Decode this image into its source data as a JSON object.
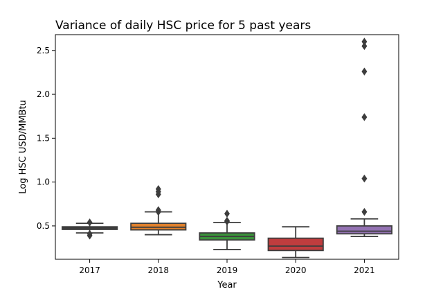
{
  "chart_data": {
    "type": "box",
    "title": "Variance of daily HSC price for 5 past years",
    "xlabel": "Year",
    "ylabel": "Log HSC USD/MMBtu",
    "ylim": [
      0.12,
      2.68
    ],
    "yticks": [
      "0.5",
      "1.0",
      "1.5",
      "2.0",
      "2.5"
    ],
    "grid": false,
    "legend": "none",
    "categories": [
      "2017",
      "2018",
      "2019",
      "2020",
      "2021"
    ],
    "boxes": [
      {
        "category": "2017",
        "color": "#3d3d3d",
        "whisker_low": 0.42,
        "q1": 0.46,
        "median": 0.475,
        "q3": 0.49,
        "whisker_high": 0.53,
        "outliers": [
          0.39,
          0.41,
          0.54
        ]
      },
      {
        "category": "2018",
        "color": "#e1812c",
        "whisker_low": 0.4,
        "q1": 0.455,
        "median": 0.485,
        "q3": 0.53,
        "whisker_high": 0.66,
        "outliers": [
          0.66,
          0.68,
          0.86,
          0.89,
          0.92
        ]
      },
      {
        "category": "2019",
        "color": "#3a923a",
        "whisker_low": 0.23,
        "q1": 0.34,
        "median": 0.38,
        "q3": 0.42,
        "whisker_high": 0.54,
        "outliers": [
          0.55,
          0.56,
          0.64
        ]
      },
      {
        "category": "2020",
        "color": "#c03d3e",
        "whisker_low": 0.14,
        "q1": 0.22,
        "median": 0.27,
        "q3": 0.36,
        "whisker_high": 0.49,
        "outliers": []
      },
      {
        "category": "2021",
        "color": "#9372b2",
        "whisker_low": 0.38,
        "q1": 0.41,
        "median": 0.44,
        "q3": 0.5,
        "whisker_high": 0.58,
        "outliers": [
          0.66,
          1.04,
          1.74,
          2.26,
          2.55,
          2.6
        ]
      }
    ]
  }
}
